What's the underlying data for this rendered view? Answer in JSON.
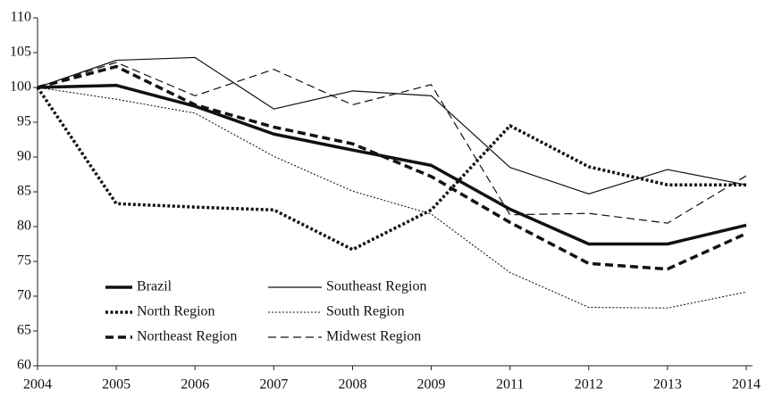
{
  "chart_data": {
    "type": "line",
    "categories": [
      "2004",
      "2005",
      "2006",
      "2007",
      "2008",
      "2009",
      "2011",
      "2012",
      "2013",
      "2014"
    ],
    "ylim": [
      60,
      110
    ],
    "yticks": [
      60,
      65,
      70,
      75,
      80,
      85,
      90,
      95,
      100,
      105,
      110
    ],
    "legend": "lower-left",
    "series": [
      {
        "name": "Brazil",
        "color": "#111111",
        "style": "solid",
        "weight": "heavy",
        "values": [
          100,
          100.3,
          97.3,
          93.3,
          91,
          88.8,
          82.5,
          77.5,
          77.5,
          80.2
        ]
      },
      {
        "name": "North Region",
        "color": "#111111",
        "style": "dotted",
        "weight": "heavy",
        "values": [
          100,
          83.3,
          82.8,
          82.4,
          76.7,
          82.4,
          94.5,
          88.6,
          86,
          86
        ]
      },
      {
        "name": "Northeast Region",
        "color": "#111111",
        "style": "dashed",
        "weight": "heavy",
        "values": [
          100,
          103,
          97.5,
          94.3,
          91.9,
          87.2,
          80.6,
          74.7,
          73.9,
          79
        ]
      },
      {
        "name": "Southeast Region",
        "color": "#111111",
        "style": "solid",
        "weight": "light",
        "values": [
          100,
          103.9,
          104.3,
          96.9,
          99.5,
          98.8,
          88.5,
          84.7,
          88.2,
          86
        ]
      },
      {
        "name": "South Region",
        "color": "#111111",
        "style": "dotted",
        "weight": "light",
        "values": [
          100,
          98.3,
          96.3,
          90.1,
          85.1,
          81.8,
          73.4,
          68.4,
          68.3,
          70.6
        ]
      },
      {
        "name": "Midwest Region",
        "color": "#111111",
        "style": "dashed",
        "weight": "light",
        "values": [
          100,
          103.6,
          98.8,
          102.6,
          97.5,
          100.4,
          81.7,
          81.9,
          80.5,
          87.3
        ]
      }
    ]
  }
}
